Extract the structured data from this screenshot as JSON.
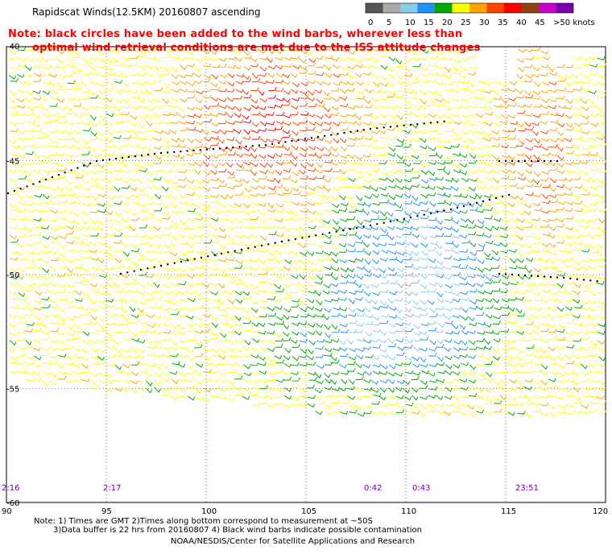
{
  "title": "Rapidscat Winds(12.5KM) 20160807 ascending",
  "note": {
    "line1": "Note: black circles have been added to the wind barbs, wherever less than",
    "line2": "optimal wind retrieval conditions are met due to the ISS attitude changes"
  },
  "colorbar": {
    "labels": [
      "0",
      "5",
      "10",
      "15",
      "20",
      "25",
      "30",
      "35",
      "40",
      "45",
      ">50 knots"
    ],
    "colors": [
      "#555555",
      "#aaaaaa",
      "#87ceeb",
      "#1e90ff",
      "#00aa00",
      "#ffff00",
      "#ffa500",
      "#ff4500",
      "#ff0000",
      "#8b4513",
      "#cc00cc",
      "#7b00b0"
    ]
  },
  "axes": {
    "x_ticks": [
      "90",
      "95",
      "100",
      "105",
      "110",
      "115",
      "120"
    ],
    "y_ticks": [
      "-45",
      "-50",
      "-55",
      "-60"
    ],
    "y_top_label": "-40"
  },
  "time_labels": [
    "2:16",
    "2:17",
    "0:42",
    "0:43",
    "23:51"
  ],
  "footer": {
    "line1": "Note: 1) Times are GMT 2)Times along bottom correspond to measurement at ~50S",
    "line2": "3)Data buffer is 22 hrs from 20160807 4) Black wind barbs indicate possible contamination",
    "line3": "NOAA/NESDIS/Center for Satellite Applications and Research"
  }
}
